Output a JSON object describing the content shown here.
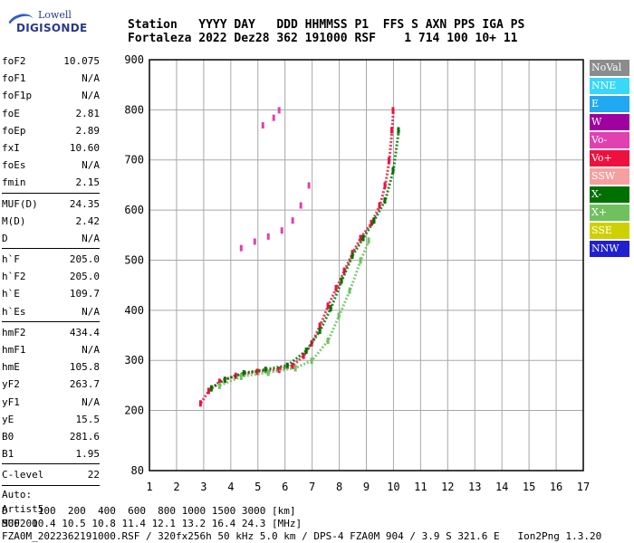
{
  "logo": {
    "line1": "Lowell",
    "line2": "DIGISONDE"
  },
  "header": {
    "line1": "Station   YYYY DAY   DDD HHMMSS P1  FFS S AXN PPS IGA PS",
    "line2": "Fortaleza 2022 Dez28 362 191000 RSF    1 714 100 10+ 11"
  },
  "params_group1": [
    {
      "name": "foF2",
      "value": "10.075"
    },
    {
      "name": "foF1",
      "value": "N/A"
    },
    {
      "name": "foF1p",
      "value": "N/A"
    },
    {
      "name": "foE",
      "value": "2.81"
    },
    {
      "name": "foEp",
      "value": "2.89"
    },
    {
      "name": "fxI",
      "value": "10.60"
    },
    {
      "name": "foEs",
      "value": "N/A"
    },
    {
      "name": "fmin",
      "value": "2.15"
    }
  ],
  "params_group2": [
    {
      "name": "MUF(D)",
      "value": "24.35"
    },
    {
      "name": "M(D)",
      "value": "2.42"
    },
    {
      "name": "D",
      "value": "N/A"
    }
  ],
  "params_group3": [
    {
      "name": "h`F",
      "value": "205.0"
    },
    {
      "name": "h`F2",
      "value": "205.0"
    },
    {
      "name": "h`E",
      "value": "109.7"
    },
    {
      "name": "h`Es",
      "value": "N/A"
    }
  ],
  "params_group4": [
    {
      "name": "hmF2",
      "value": "434.4"
    },
    {
      "name": "hmF1",
      "value": "N/A"
    },
    {
      "name": "hmE",
      "value": "105.8"
    },
    {
      "name": "yF2",
      "value": "263.7"
    },
    {
      "name": "yF1",
      "value": "N/A"
    },
    {
      "name": "yE",
      "value": "15.5"
    },
    {
      "name": "B0",
      "value": "281.6"
    },
    {
      "name": "B1",
      "value": "1.95"
    }
  ],
  "params_group5": [
    {
      "name": "C-level",
      "value": "22"
    }
  ],
  "auto": {
    "l1": "Auto:",
    "l2": "Artist5",
    "l3": "500200"
  },
  "footer": {
    "l1": "D     100  200  400  600  800 1000 1500 3000 [km]",
    "l2": "MUF  10.4 10.5 10.8 11.4 12.1 13.2 16.4 24.3 [MHz]",
    "l3": "FZA0M_2022362191000.RSF / 320fx256h 50 kHz 5.0 km / DPS-4 FZA0M 904 / 3.9 S 321.6 E   Ion2Png 1.3.20"
  },
  "legend": [
    {
      "label": "NoVal",
      "color": "#8c8c8c"
    },
    {
      "label": "NNE",
      "color": "#38d8f8"
    },
    {
      "label": "E",
      "color": "#20a8f0"
    },
    {
      "label": "W",
      "color": "#a000a0"
    },
    {
      "label": "Vo-",
      "color": "#e040b0"
    },
    {
      "label": "Vo+",
      "color": "#f01040"
    },
    {
      "label": "SSW",
      "color": "#f4a0a0"
    },
    {
      "label": "X-",
      "color": "#007000"
    },
    {
      "label": "X+",
      "color": "#70c060"
    },
    {
      "label": "SSE",
      "color": "#d0d000"
    },
    {
      "label": "NNW",
      "color": "#2020d0"
    }
  ],
  "chart_data": {
    "type": "scatter",
    "xlim": [
      1,
      17
    ],
    "ylim": [
      80,
      900
    ],
    "x_ticks": [
      1,
      2,
      3,
      4,
      5,
      6,
      7,
      8,
      9,
      10,
      11,
      12,
      13,
      14,
      15,
      16,
      17
    ],
    "y_ticks": [
      80,
      200,
      300,
      400,
      500,
      600,
      700,
      800,
      900
    ],
    "grid": true,
    "series": [
      {
        "name": "Vo+",
        "color": "#f01040",
        "points": [
          [
            2.9,
            215
          ],
          [
            3.2,
            240
          ],
          [
            3.6,
            258
          ],
          [
            4.2,
            270
          ],
          [
            5.0,
            278
          ],
          [
            5.8,
            282
          ],
          [
            6.3,
            290
          ],
          [
            6.7,
            310
          ],
          [
            7.0,
            335
          ],
          [
            7.3,
            370
          ],
          [
            7.6,
            410
          ],
          [
            7.9,
            445
          ],
          [
            8.2,
            480
          ],
          [
            8.5,
            515
          ],
          [
            8.8,
            545
          ],
          [
            9.2,
            575
          ],
          [
            9.5,
            610
          ],
          [
            9.7,
            650
          ],
          [
            9.85,
            700
          ],
          [
            9.95,
            760
          ],
          [
            10.0,
            800
          ]
        ]
      },
      {
        "name": "X-",
        "color": "#007000",
        "points": [
          [
            3.3,
            245
          ],
          [
            3.8,
            262
          ],
          [
            4.5,
            275
          ],
          [
            5.3,
            282
          ],
          [
            6.1,
            290
          ],
          [
            6.8,
            320
          ],
          [
            7.3,
            360
          ],
          [
            7.7,
            405
          ],
          [
            8.1,
            460
          ],
          [
            8.5,
            510
          ],
          [
            8.9,
            545
          ],
          [
            9.3,
            580
          ],
          [
            9.7,
            620
          ],
          [
            10.0,
            680
          ],
          [
            10.2,
            760
          ]
        ]
      },
      {
        "name": "X+",
        "color": "#70c060",
        "points": [
          [
            3.6,
            250
          ],
          [
            4.4,
            268
          ],
          [
            5.4,
            276
          ],
          [
            6.4,
            285
          ],
          [
            7.0,
            300
          ],
          [
            7.6,
            340
          ],
          [
            8.0,
            390
          ],
          [
            8.4,
            440
          ],
          [
            8.8,
            500
          ],
          [
            9.1,
            540
          ]
        ]
      },
      {
        "name": "Vo-",
        "color": "#e040b0",
        "points": [
          [
            4.4,
            525
          ],
          [
            4.9,
            538
          ],
          [
            5.4,
            548
          ],
          [
            5.9,
            560
          ],
          [
            6.3,
            580
          ],
          [
            6.6,
            610
          ],
          [
            6.9,
            650
          ],
          [
            5.2,
            770
          ],
          [
            5.6,
            785
          ],
          [
            5.8,
            800
          ]
        ]
      }
    ]
  }
}
